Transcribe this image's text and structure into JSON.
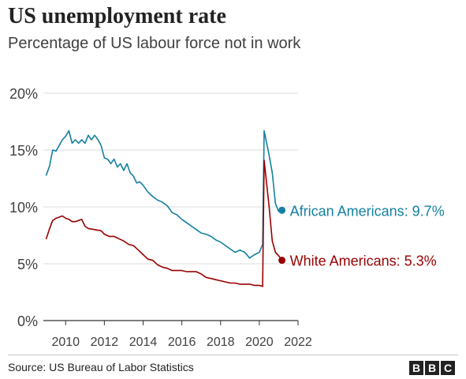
{
  "header": {
    "title": "US unemployment rate",
    "subtitle": "Percentage of US labour force not in work"
  },
  "footer": {
    "source": "Source: US Bureau of Labor Statistics",
    "logo_letters": [
      "B",
      "B",
      "C"
    ]
  },
  "colors": {
    "african_americans": "#1380A1",
    "white_americans": "#990000",
    "grid": "#dddddd",
    "axis": "#333333",
    "tick_text": "#404040"
  },
  "chart_data": {
    "type": "line",
    "title": "US unemployment rate",
    "subtitle": "Percentage of US labour force not in work",
    "xlabel": "",
    "ylabel": "",
    "xlim": [
      2008.85,
      2022
    ],
    "ylim": [
      0,
      20
    ],
    "grid": true,
    "x_ticks": [
      2010,
      2012,
      2014,
      2016,
      2018,
      2020,
      2022
    ],
    "y_ticks": [
      0,
      5,
      10,
      15,
      20
    ],
    "y_tick_labels": [
      "0%",
      "5%",
      "10%",
      "15%",
      "20%"
    ],
    "x_tick_labels": [
      "2010",
      "2012",
      "2014",
      "2016",
      "2018",
      "2020",
      "2022"
    ],
    "legend": "direct labels at line ends",
    "series": [
      {
        "name": "African Americans",
        "label": "African Americans: 9.7%",
        "x": [
          2009.0,
          2009.17,
          2009.33,
          2009.5,
          2009.67,
          2009.83,
          2010.0,
          2010.17,
          2010.33,
          2010.5,
          2010.67,
          2010.83,
          2011.0,
          2011.17,
          2011.33,
          2011.5,
          2011.67,
          2011.83,
          2012.0,
          2012.17,
          2012.33,
          2012.5,
          2012.67,
          2012.83,
          2013.0,
          2013.17,
          2013.33,
          2013.5,
          2013.67,
          2013.83,
          2014.0,
          2014.25,
          2014.5,
          2014.75,
          2015.0,
          2015.25,
          2015.5,
          2015.75,
          2016.0,
          2016.25,
          2016.5,
          2016.75,
          2017.0,
          2017.25,
          2017.5,
          2017.75,
          2018.0,
          2018.25,
          2018.5,
          2018.75,
          2019.0,
          2019.25,
          2019.5,
          2019.75,
          2020.0,
          2020.17,
          2020.25,
          2020.33,
          2020.5,
          2020.67,
          2020.83,
          2021.0,
          2021.17
        ],
        "values": [
          12.8,
          13.6,
          15.0,
          14.9,
          15.4,
          15.9,
          16.2,
          16.7,
          15.6,
          15.9,
          15.6,
          15.9,
          15.6,
          16.3,
          15.9,
          16.3,
          15.9,
          15.4,
          14.3,
          14.2,
          13.8,
          14.2,
          13.5,
          13.8,
          13.2,
          13.8,
          13.0,
          12.7,
          12.1,
          12.2,
          11.9,
          11.3,
          10.9,
          10.6,
          10.4,
          10.1,
          9.5,
          9.3,
          8.9,
          8.6,
          8.3,
          8.0,
          7.7,
          7.6,
          7.4,
          7.1,
          6.9,
          6.6,
          6.3,
          6.0,
          6.2,
          6.0,
          5.5,
          5.8,
          6.0,
          6.7,
          16.7,
          16.0,
          14.6,
          13.0,
          10.3,
          9.6,
          9.7
        ]
      },
      {
        "name": "White Americans",
        "label": "White Americans: 5.3%",
        "x": [
          2009.0,
          2009.17,
          2009.33,
          2009.5,
          2009.67,
          2009.83,
          2010.0,
          2010.17,
          2010.33,
          2010.5,
          2010.67,
          2010.83,
          2011.0,
          2011.17,
          2011.5,
          2011.83,
          2012.0,
          2012.25,
          2012.5,
          2012.75,
          2013.0,
          2013.25,
          2013.5,
          2013.75,
          2014.0,
          2014.25,
          2014.5,
          2014.75,
          2015.0,
          2015.25,
          2015.5,
          2015.75,
          2016.0,
          2016.25,
          2016.5,
          2016.75,
          2017.0,
          2017.25,
          2017.5,
          2017.75,
          2018.0,
          2018.25,
          2018.5,
          2018.75,
          2019.0,
          2019.25,
          2019.5,
          2019.75,
          2020.0,
          2020.17,
          2020.25,
          2020.33,
          2020.5,
          2020.67,
          2020.83,
          2021.0,
          2021.17
        ],
        "values": [
          7.2,
          8.1,
          8.8,
          9.0,
          9.1,
          9.2,
          9.0,
          8.9,
          8.7,
          8.7,
          8.8,
          8.9,
          8.3,
          8.1,
          8.0,
          7.9,
          7.6,
          7.4,
          7.4,
          7.2,
          7.0,
          6.7,
          6.6,
          6.2,
          5.8,
          5.4,
          5.3,
          4.9,
          4.7,
          4.6,
          4.4,
          4.4,
          4.4,
          4.3,
          4.3,
          4.3,
          4.1,
          3.8,
          3.7,
          3.6,
          3.5,
          3.4,
          3.3,
          3.3,
          3.2,
          3.2,
          3.2,
          3.1,
          3.1,
          3.0,
          14.1,
          12.8,
          10.1,
          7.0,
          6.0,
          5.7,
          5.3
        ]
      }
    ]
  }
}
